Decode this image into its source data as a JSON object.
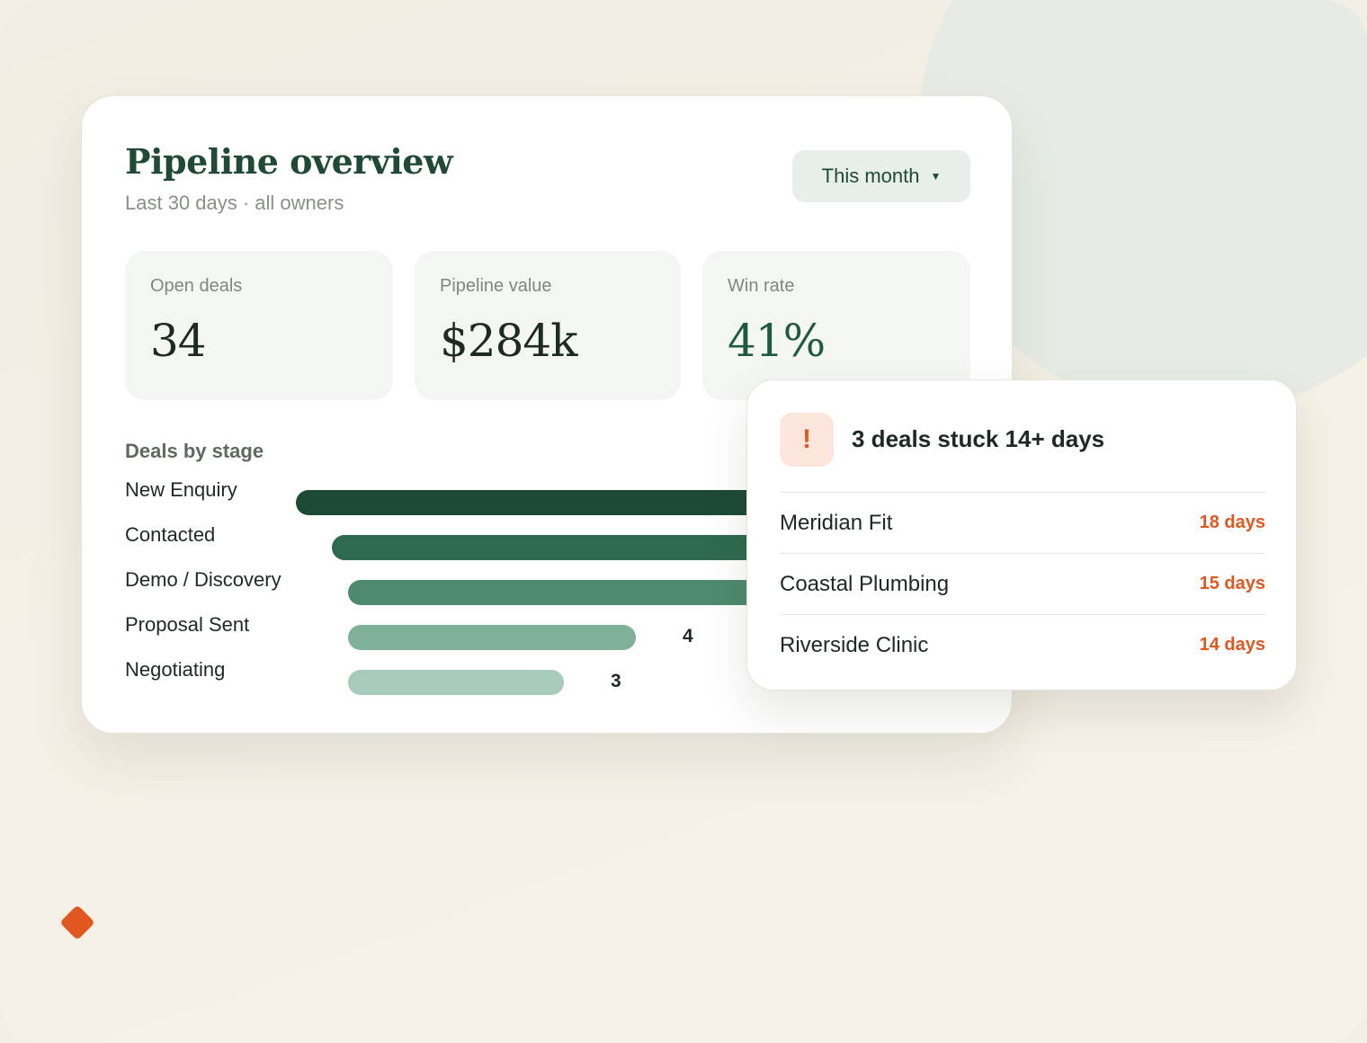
{
  "overview": {
    "title": "Pipeline overview",
    "subtitle": "Last 30 days · all owners",
    "range_label": "This month"
  },
  "kpis": [
    {
      "label": "Open deals",
      "value": "34"
    },
    {
      "label": "Pipeline value",
      "value": "$284k"
    },
    {
      "label": "Win rate",
      "value": "41%"
    }
  ],
  "chart_data": {
    "type": "bar",
    "title": "Deals by stage",
    "categories": [
      "New Enquiry",
      "Contacted",
      "Demo / Discovery",
      "Proposal Sent",
      "Negotiating"
    ],
    "values": [
      null,
      null,
      null,
      4,
      3
    ],
    "bar_colors": [
      "#1c4a37",
      "#2e6a4f",
      "#4e8a6e",
      "#7fb098",
      "#a7cbbb"
    ]
  },
  "alert": {
    "icon": "exclamation-icon",
    "title": "3 deals stuck 14+ days",
    "items": [
      {
        "name": "Meridian Fit",
        "days": "18 days"
      },
      {
        "name": "Coastal Plumbing",
        "days": "15 days"
      },
      {
        "name": "Riverside Clinic",
        "days": "14 days"
      }
    ]
  },
  "colors": {
    "brand": "#1e4a36",
    "alert_accent": "#e2571f",
    "background": "#f3efe4"
  }
}
